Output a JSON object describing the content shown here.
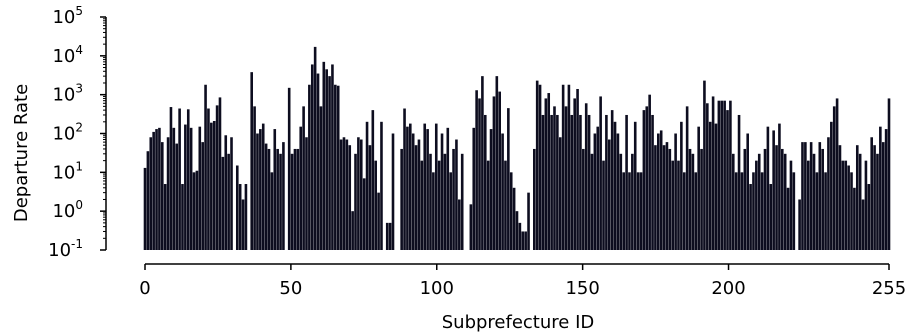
{
  "chart_data": {
    "type": "bar",
    "xlabel": "Subprefecture ID",
    "ylabel": "Departure Rate",
    "y_scale": "log",
    "ylim_exponents": [
      -1,
      5
    ],
    "xlim": [
      0,
      255
    ],
    "x_ticks": [
      {
        "value": 0,
        "label": "0"
      },
      {
        "value": 50,
        "label": "50"
      },
      {
        "value": 100,
        "label": "100"
      },
      {
        "value": 150,
        "label": "150"
      },
      {
        "value": 200,
        "label": "200"
      },
      {
        "value": 255,
        "label": "255"
      }
    ],
    "y_ticks": [
      {
        "exp": -1,
        "base": "10",
        "sup": "-1"
      },
      {
        "exp": 0,
        "base": "10",
        "sup": "0"
      },
      {
        "exp": 1,
        "base": "10",
        "sup": "1"
      },
      {
        "exp": 2,
        "base": "10",
        "sup": "2"
      },
      {
        "exp": 3,
        "base": "10",
        "sup": "3"
      },
      {
        "exp": 4,
        "base": "10",
        "sup": "4"
      },
      {
        "exp": 5,
        "base": "10",
        "sup": "5"
      }
    ],
    "bar_color": "#0d0d1f",
    "grid": false,
    "values": [
      13,
      35,
      80,
      110,
      130,
      140,
      60,
      5,
      80,
      480,
      140,
      55,
      440,
      5,
      170,
      420,
      140,
      10,
      11,
      150,
      60,
      1800,
      440,
      190,
      210,
      530,
      850,
      25,
      90,
      30,
      80,
      0.1,
      15,
      5,
      2,
      5,
      0.1,
      3800,
      500,
      100,
      130,
      180,
      55,
      40,
      10,
      130,
      40,
      30,
      60,
      0.1,
      1500,
      30,
      40,
      40,
      150,
      500,
      80,
      1800,
      6000,
      17000,
      3500,
      500,
      7000,
      4500,
      3000,
      6000,
      1800,
      1700,
      70,
      80,
      70,
      50,
      1,
      30,
      80,
      70,
      7,
      200,
      50,
      400,
      20,
      3,
      200,
      0.1,
      0.5,
      0.5,
      100,
      0.1,
      0.1,
      40,
      440,
      150,
      180,
      100,
      50,
      70,
      20,
      180,
      130,
      30,
      10,
      180,
      20,
      100,
      30,
      140,
      10,
      40,
      70,
      2,
      30,
      0.1,
      0.1,
      1.5,
      140,
      1300,
      800,
      3000,
      300,
      20,
      130,
      900,
      3000,
      1200,
      100,
      20,
      450,
      10,
      4,
      1,
      0.5,
      0.3,
      0.3,
      3,
      0.1,
      40,
      2300,
      1800,
      300,
      800,
      1100,
      300,
      500,
      300,
      80,
      1800,
      500,
      1800,
      300,
      800,
      1400,
      300,
      40,
      600,
      300,
      30,
      100,
      150,
      900,
      20,
      300,
      70,
      400,
      200,
      100,
      30,
      10,
      300,
      10,
      30,
      200,
      10,
      10,
      400,
      500,
      1000,
      300,
      50,
      100,
      120,
      50,
      60,
      40,
      20,
      100,
      20,
      200,
      10,
      500,
      40,
      30,
      10,
      150,
      40,
      2300,
      600,
      200,
      900,
      180,
      700,
      700,
      700,
      400,
      700,
      30,
      10,
      300,
      10,
      40,
      100,
      5,
      10,
      20,
      30,
      10,
      40,
      150,
      5,
      120,
      50,
      180,
      40,
      30,
      4,
      20,
      10,
      0.1,
      2,
      60,
      60,
      20,
      60,
      30,
      10,
      60,
      40,
      10,
      80,
      200,
      500,
      800,
      50,
      20,
      20,
      15,
      10,
      4,
      50,
      30,
      2,
      20,
      5,
      80,
      50,
      30,
      150,
      60,
      130,
      800
    ]
  }
}
